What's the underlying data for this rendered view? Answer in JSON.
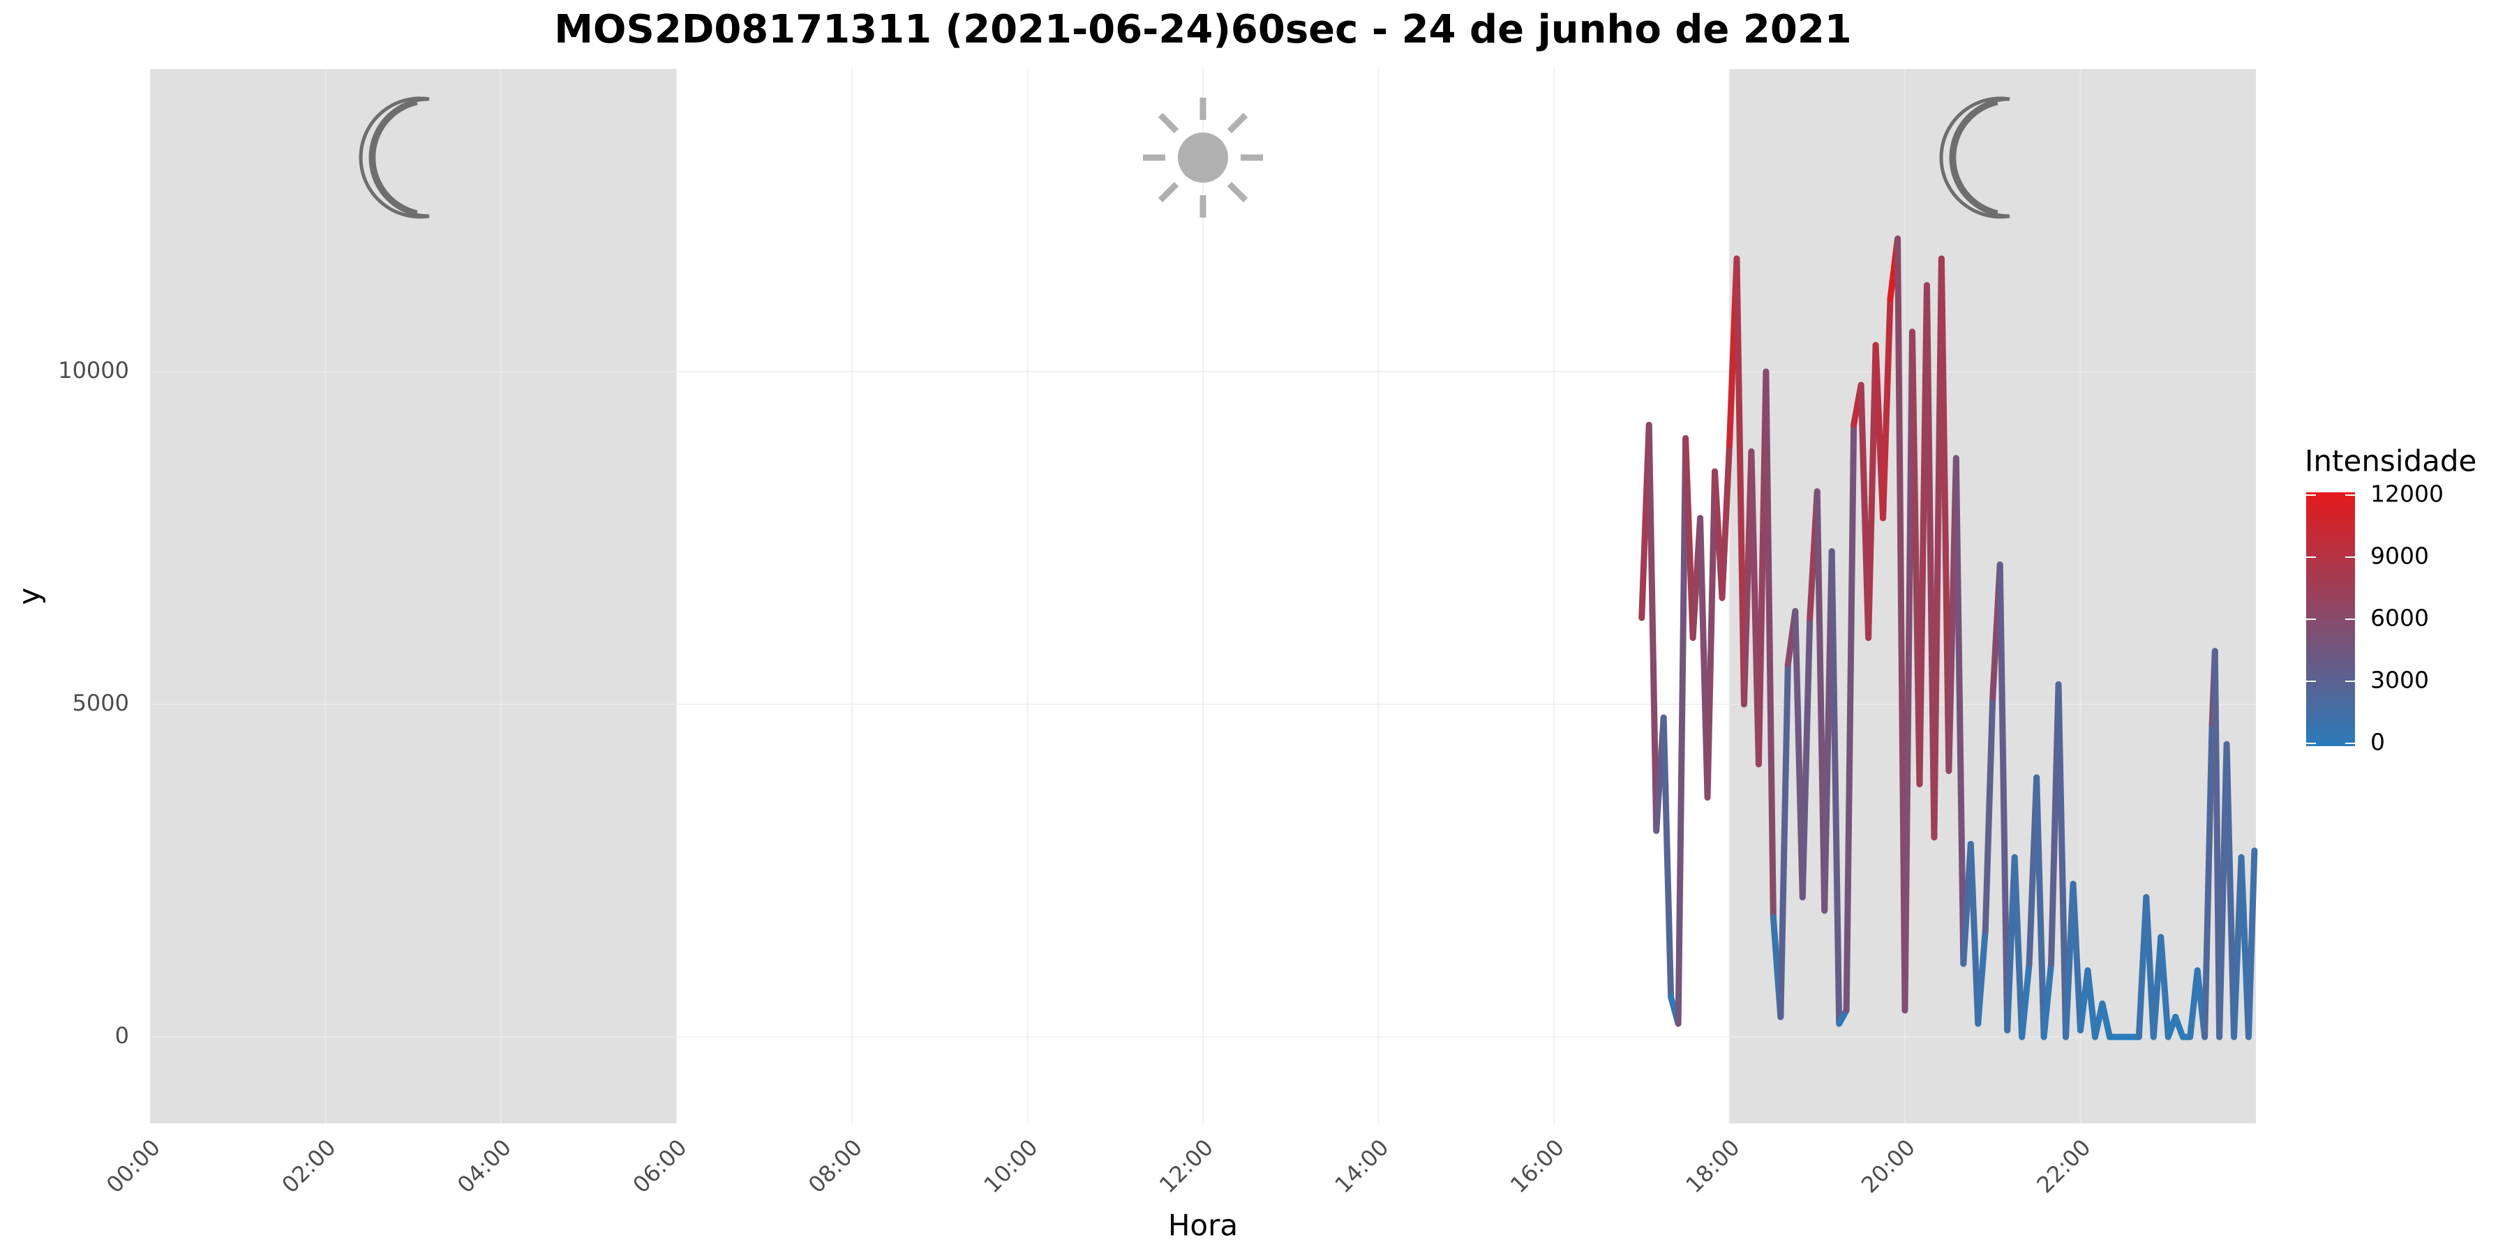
{
  "chart_data": {
    "type": "line",
    "title": "MOS2D08171311 (2021-06-24)60sec - 24 de junho de 2021",
    "x_label": "Hora",
    "y_label": "y",
    "x": [
      "17:00",
      "17:05",
      "17:10",
      "17:15",
      "17:20",
      "17:25",
      "17:30",
      "17:35",
      "17:40",
      "17:45",
      "17:50",
      "17:55",
      "18:00",
      "18:05",
      "18:10",
      "18:15",
      "18:20",
      "18:25",
      "18:30",
      "18:35",
      "18:40",
      "18:45",
      "18:50",
      "18:55",
      "19:00",
      "19:05",
      "19:10",
      "19:15",
      "19:20",
      "19:25",
      "19:30",
      "19:35",
      "19:40",
      "19:45",
      "19:50",
      "19:55",
      "20:00",
      "20:05",
      "20:10",
      "20:15",
      "20:20",
      "20:25",
      "20:30",
      "20:35",
      "20:40",
      "20:45",
      "20:50",
      "20:55",
      "21:00",
      "21:05",
      "21:10",
      "21:15",
      "21:20",
      "21:25",
      "21:30",
      "21:35",
      "21:40",
      "21:45",
      "21:50",
      "21:55",
      "22:00",
      "22:05",
      "22:10",
      "22:15",
      "22:20",
      "22:25",
      "22:30",
      "22:35",
      "22:40",
      "22:45",
      "22:50",
      "22:55",
      "23:00",
      "23:05",
      "23:10",
      "23:15",
      "23:20",
      "23:25",
      "23:30",
      "23:32",
      "23:35",
      "23:40",
      "23:45",
      "23:50",
      "23:55",
      "23:59"
    ],
    "series": [
      {
        "values": [
          6300,
          9200,
          3100,
          4800,
          600,
          200,
          9000,
          6000,
          7800,
          3600,
          8500,
          6600,
          8900,
          11700,
          5000,
          8800,
          4100,
          10000,
          1800,
          300,
          5600,
          6400,
          2100,
          6300,
          8200,
          1900,
          7300,
          200,
          400,
          9200,
          9800,
          6000,
          10400,
          7800,
          11100,
          12000,
          400,
          10600,
          3800,
          11300,
          3000,
          11700,
          4000,
          8700,
          1100,
          2900,
          200,
          1600,
          5100,
          7100,
          100,
          2700,
          0,
          1100,
          3900,
          0,
          1100,
          5300,
          0,
          2300,
          100,
          1000,
          0,
          500,
          0,
          0,
          0,
          0,
          0,
          2100,
          0,
          1500,
          0,
          300,
          0,
          0,
          1000,
          0,
          4700,
          5800,
          0,
          4400,
          0,
          2700,
          0,
          2800
        ]
      }
    ],
    "xlim": [
      "00:00",
      "24:00"
    ],
    "xticks": [
      "00:00",
      "02:00",
      "04:00",
      "06:00",
      "08:00",
      "10:00",
      "12:00",
      "14:00",
      "16:00",
      "18:00",
      "20:00",
      "22:00"
    ],
    "ylim": [
      -1300,
      14550
    ],
    "yticks": [
      0,
      5000,
      10000
    ],
    "grid": true,
    "night_periods": [
      [
        "00:00",
        "06:00"
      ],
      [
        "18:00",
        "24:00"
      ]
    ],
    "legend": {
      "title": "Intensidade",
      "position": "right",
      "low_color": "#2b7bba",
      "high_color": "#e41a1c",
      "limits": [
        0,
        12000
      ],
      "ticks": [
        0,
        3000,
        6000,
        9000,
        12000
      ]
    }
  }
}
